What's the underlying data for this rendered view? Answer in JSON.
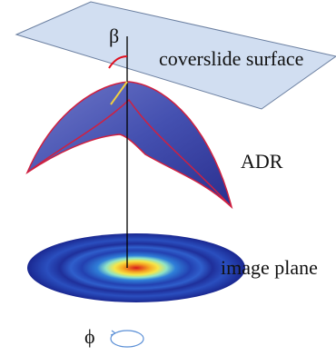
{
  "labels": {
    "beta": "β",
    "coverslide": "coverslide surface",
    "adr": "ADR",
    "image_plane": "image plane",
    "phi": "ϕ"
  }
}
